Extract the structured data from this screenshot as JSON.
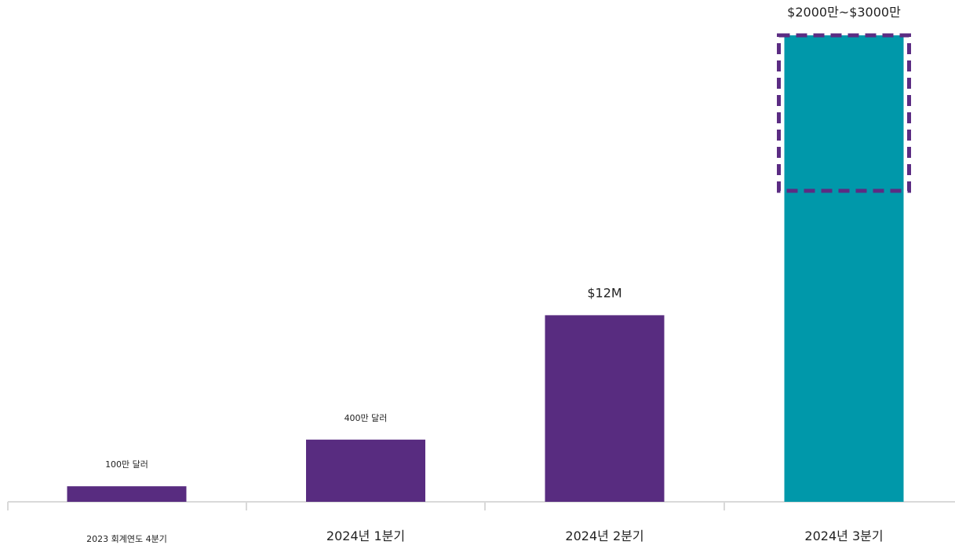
{
  "chart_data": {
    "type": "bar",
    "categories": [
      "2023 회계연도 4분기",
      "2024년 1분기",
      "2024년 2분기",
      "2024년 3분기"
    ],
    "values": [
      1,
      4,
      12,
      30
    ],
    "value_labels": [
      "100만 달러",
      "400만 달러",
      "$12M",
      "$2000만~$3000만"
    ],
    "range": {
      "category": "2024년 3분기",
      "low": 20,
      "high": 30
    },
    "unit": "",
    "ylim": [
      0,
      30
    ],
    "grid": false,
    "legend": "none",
    "title": "",
    "xlabel": "",
    "ylabel": "",
    "colors": {
      "actual": "#582c80",
      "projected": "#0098aa",
      "range_outline": "#5b2c83"
    }
  }
}
